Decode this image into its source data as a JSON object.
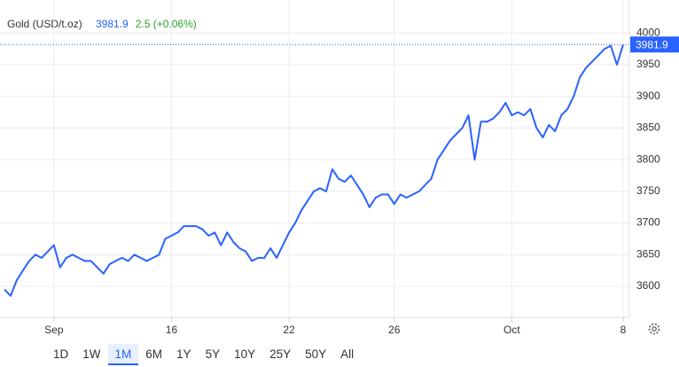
{
  "chart_data": {
    "type": "line",
    "title": "Gold (USD/t.oz)",
    "change": "2.5 (+0.06%)",
    "color": "#2962ff",
    "values": [
      3595,
      3585,
      3610,
      3625,
      3640,
      3650,
      3645,
      3655,
      3665,
      3630,
      3645,
      3650,
      3645,
      3640,
      3640,
      3630,
      3620,
      3635,
      3640,
      3645,
      3640,
      3650,
      3645,
      3640,
      3645,
      3650,
      3675,
      3680,
      3685,
      3695,
      3695,
      3695,
      3690,
      3680,
      3685,
      3665,
      3685,
      3670,
      3660,
      3655,
      3640,
      3645,
      3645,
      3660,
      3645,
      3665,
      3685,
      3700,
      3720,
      3735,
      3750,
      3755,
      3750,
      3785,
      3770,
      3765,
      3775,
      3760,
      3745,
      3725,
      3740,
      3745,
      3745,
      3730,
      3745,
      3740,
      3745,
      3750,
      3760,
      3770,
      3800,
      3815,
      3830,
      3840,
      3850,
      3870,
      3800,
      3860,
      3860,
      3865,
      3875,
      3890,
      3870,
      3875,
      3870,
      3880,
      3850,
      3835,
      3855,
      3845,
      3870,
      3880,
      3900,
      3930,
      3945,
      3955,
      3965,
      3975,
      3980,
      3950,
      3981.9
    ],
    "xticks": [
      {
        "value": 8,
        "label": "Sep"
      },
      {
        "value": 27,
        "label": "16"
      },
      {
        "value": 46,
        "label": "22"
      },
      {
        "value": 63,
        "label": "26"
      },
      {
        "value": 82,
        "label": "Oct"
      },
      {
        "value": 100,
        "label": "8"
      }
    ],
    "ylim": [
      3551,
      4041
    ],
    "yticks": [
      3600,
      3650,
      3700,
      3750,
      3800,
      3850,
      3900,
      3950,
      4000
    ],
    "grid": true
  },
  "toolbar": {
    "ranges": [
      "1D",
      "1W",
      "1M",
      "6M",
      "1Y",
      "5Y",
      "10Y",
      "25Y",
      "50Y",
      "All"
    ],
    "selected": "1M"
  }
}
